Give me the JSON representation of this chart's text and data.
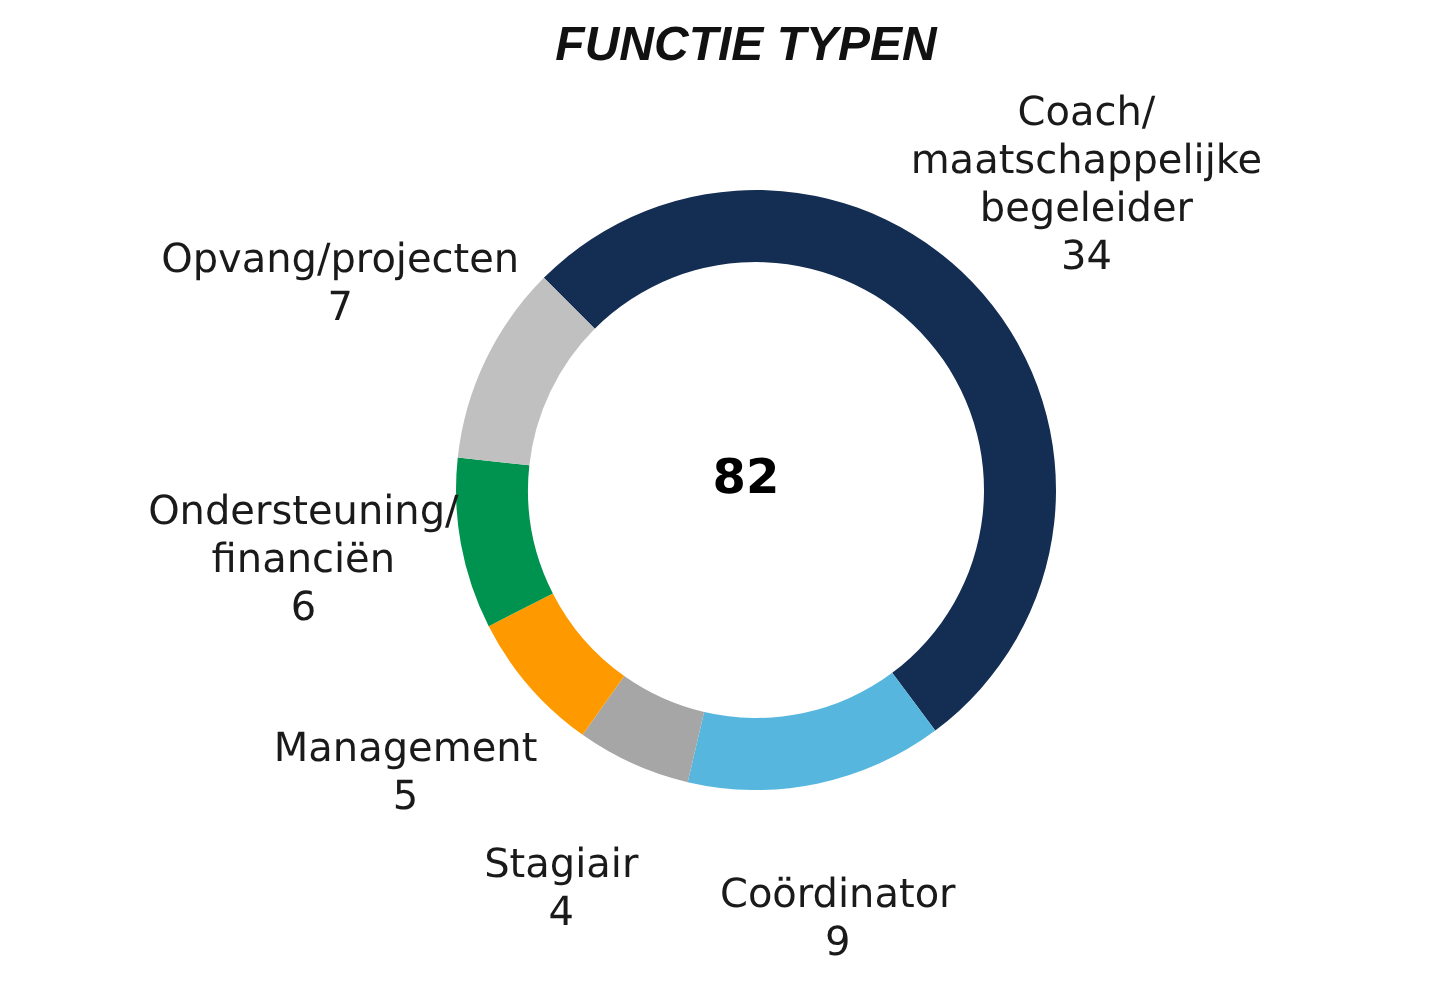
{
  "chart_data": {
    "type": "donut",
    "title": "FUNCTIE TYPEN",
    "categories": [
      "Coach/ maatschappelijke begeleider",
      "Coördinator",
      "Stagiair",
      "Management",
      "Ondersteuning/ financiën",
      "Opvang/projecten"
    ],
    "values": [
      34,
      9,
      4,
      5,
      6,
      7
    ],
    "colors": [
      "#142d52",
      "#56b6de",
      "#a6a6a6",
      "#ff9900",
      "#00934f",
      "#c0c0c0"
    ],
    "data_labels": true,
    "annotations": [
      "82"
    ]
  }
}
